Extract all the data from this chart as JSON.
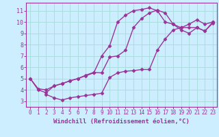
{
  "xlabel": "Windchill (Refroidissement éolien,°C)",
  "bg_color": "#cceeff",
  "grid_color": "#aadddd",
  "line_color": "#993399",
  "spine_color": "#993399",
  "xlim": [
    -0.5,
    23.5
  ],
  "ylim": [
    2.5,
    11.7
  ],
  "xticks": [
    0,
    1,
    2,
    3,
    4,
    5,
    6,
    7,
    8,
    9,
    10,
    11,
    12,
    13,
    14,
    15,
    16,
    17,
    18,
    19,
    20,
    21,
    22,
    23
  ],
  "yticks": [
    3,
    4,
    5,
    6,
    7,
    8,
    9,
    10,
    11
  ],
  "line1_x": [
    0,
    1,
    2,
    3,
    4,
    5,
    6,
    7,
    8,
    9,
    10,
    11,
    12,
    13,
    14,
    15,
    16,
    17,
    18,
    19,
    20,
    21,
    22,
    23
  ],
  "line1_y": [
    5.0,
    4.0,
    3.75,
    4.35,
    4.55,
    4.8,
    5.0,
    5.25,
    5.5,
    7.0,
    7.9,
    10.0,
    10.6,
    11.0,
    11.1,
    11.25,
    11.0,
    10.0,
    9.8,
    9.5,
    9.5,
    9.5,
    9.2,
    9.9
  ],
  "line2_x": [
    0,
    1,
    2,
    3,
    4,
    5,
    6,
    7,
    8,
    9,
    10,
    11,
    12,
    13,
    14,
    15,
    16,
    17,
    18,
    19,
    20,
    21,
    22,
    23
  ],
  "line2_y": [
    5.0,
    4.1,
    4.0,
    4.35,
    4.55,
    4.8,
    5.0,
    5.3,
    5.55,
    5.5,
    6.9,
    7.0,
    7.5,
    9.5,
    10.3,
    10.8,
    11.05,
    10.8,
    9.8,
    9.3,
    9.0,
    9.5,
    9.2,
    10.0
  ],
  "line3_x": [
    2,
    3,
    4,
    5,
    6,
    7,
    8,
    9,
    10,
    11,
    12,
    13,
    14,
    15,
    16,
    17,
    18,
    19,
    20,
    21,
    22,
    23
  ],
  "line3_y": [
    3.6,
    3.3,
    3.1,
    3.3,
    3.4,
    3.5,
    3.6,
    3.7,
    5.1,
    5.5,
    5.65,
    5.7,
    5.8,
    5.8,
    7.5,
    8.5,
    9.3,
    9.5,
    9.8,
    10.2,
    9.8,
    10.0
  ],
  "marker": "D",
  "markersize": 2.5,
  "linewidth": 1.0,
  "tick_fontsize": 5.5,
  "label_fontsize": 6.5
}
